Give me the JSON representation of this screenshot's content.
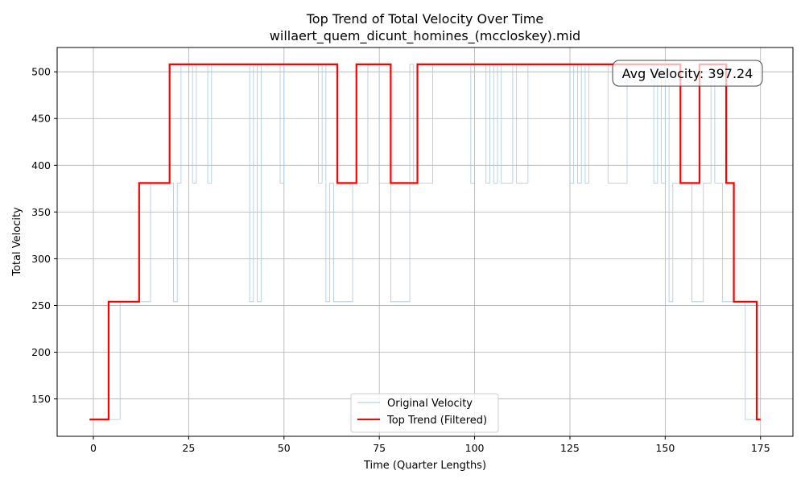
{
  "chart_data": {
    "type": "line",
    "title": "Top Trend of Total Velocity Over Time",
    "subtitle": "willaert_quem_dicunt_homines_(mccloskey).mid",
    "xlabel": "Time (Quarter Lengths)",
    "ylabel": "Total Velocity",
    "xlim": [
      -9.5,
      183.5
    ],
    "ylim": [
      110,
      526
    ],
    "x_ticks": [
      0,
      25,
      50,
      75,
      100,
      125,
      150,
      175
    ],
    "y_ticks": [
      150,
      200,
      250,
      300,
      350,
      400,
      450,
      500
    ],
    "grid": true,
    "legend_position": "lower center",
    "annotation": "Avg Velocity: 397.24",
    "colors": {
      "original": "#a6c8e0",
      "trend": "#ff0000",
      "grid": "#b0b0b0"
    },
    "series": [
      {
        "name": "Original Velocity",
        "style": "step",
        "x": [
          -1,
          7,
          7,
          15,
          15,
          21,
          21,
          22,
          22,
          23,
          23,
          26,
          26,
          27,
          27,
          30,
          30,
          31,
          31,
          32,
          32,
          41,
          41,
          42,
          42,
          43,
          43,
          44,
          44,
          49,
          49,
          50,
          50,
          59,
          59,
          60,
          60,
          61,
          61,
          62,
          62,
          63,
          63,
          64,
          64,
          68,
          68,
          72,
          72,
          75,
          75,
          76,
          76,
          78,
          78,
          83,
          83,
          84,
          84,
          88,
          88,
          89,
          89,
          99,
          99,
          100,
          100,
          103,
          103,
          104,
          104,
          105,
          105,
          106,
          106,
          107,
          107,
          110,
          110,
          111,
          111,
          114,
          114,
          125,
          125,
          126,
          126,
          127,
          127,
          128,
          128,
          129,
          129,
          130,
          130,
          135,
          135,
          140,
          140,
          141,
          141,
          147,
          147,
          148,
          148,
          149,
          149,
          150,
          150,
          151,
          151,
          152,
          152,
          157,
          157,
          160,
          160,
          162,
          162,
          163,
          163,
          165,
          165,
          168,
          168,
          171,
          171,
          175
        ],
        "y": [
          128,
          128,
          254,
          254,
          381,
          381,
          254,
          254,
          381,
          381,
          508,
          508,
          381,
          381,
          508,
          508,
          381,
          381,
          508,
          508,
          508,
          508,
          254,
          254,
          508,
          508,
          254,
          254,
          508,
          508,
          381,
          381,
          508,
          508,
          381,
          381,
          508,
          508,
          254,
          254,
          381,
          381,
          254,
          254,
          254,
          254,
          381,
          381,
          508,
          508,
          381,
          381,
          381,
          381,
          254,
          254,
          508,
          508,
          381,
          381,
          381,
          381,
          508,
          508,
          381,
          381,
          508,
          508,
          381,
          381,
          508,
          508,
          381,
          381,
          508,
          508,
          381,
          381,
          508,
          508,
          381,
          381,
          508,
          508,
          381,
          381,
          508,
          508,
          381,
          381,
          508,
          508,
          381,
          381,
          508,
          508,
          381,
          381,
          508,
          508,
          508,
          508,
          381,
          381,
          508,
          508,
          381,
          381,
          508,
          508,
          254,
          254,
          381,
          381,
          254,
          254,
          381,
          381,
          508,
          508,
          381,
          381,
          254,
          254,
          254,
          254,
          128,
          128
        ]
      },
      {
        "name": "Top Trend (Filtered)",
        "style": "step",
        "x": [
          -1,
          4,
          4,
          12,
          12,
          20,
          20,
          64,
          64,
          69,
          69,
          78,
          78,
          85,
          85,
          154,
          154,
          159,
          159,
          166,
          166,
          168,
          168,
          174,
          174,
          175
        ],
        "y": [
          128,
          128,
          254,
          254,
          381,
          381,
          508,
          508,
          381,
          381,
          508,
          508,
          381,
          381,
          508,
          508,
          381,
          381,
          508,
          508,
          381,
          381,
          254,
          254,
          128,
          128
        ]
      }
    ]
  }
}
